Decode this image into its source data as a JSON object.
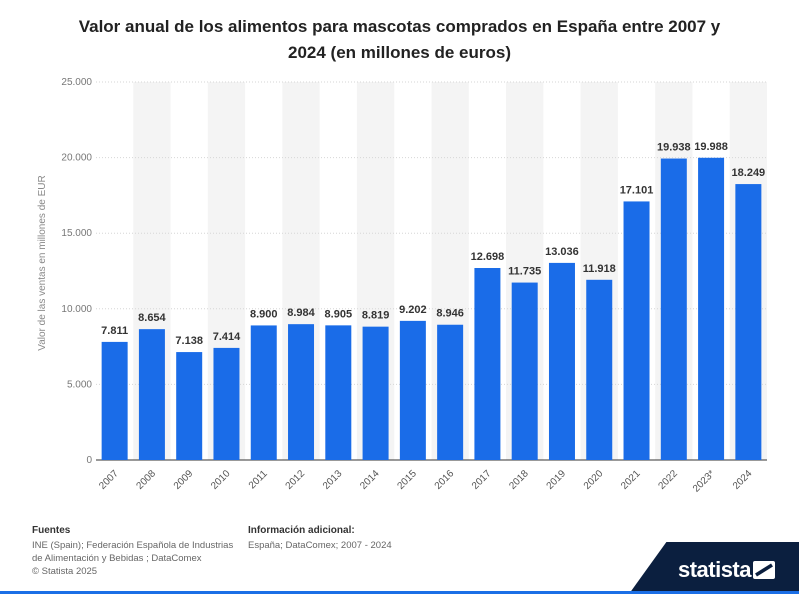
{
  "chart_data": {
    "type": "bar",
    "title": "Valor anual de los alimentos para mascotas comprados en España entre 2007 y 2024 (en millones de euros)",
    "title_lines": [
      "Valor anual de los alimentos para mascotas comprados en España entre 2007 y",
      "2024 (en millones de euros)"
    ],
    "ylabel": "Valor de las ventas en millones de EUR",
    "xlabel": "",
    "ylim": [
      0,
      25000
    ],
    "yticks": [
      0,
      5000,
      10000,
      15000,
      20000,
      25000
    ],
    "ytick_labels": [
      "0",
      "5.000",
      "10.000",
      "15.000",
      "20.000",
      "25.000"
    ],
    "categories": [
      "2007",
      "2008",
      "2009",
      "2010",
      "2011",
      "2012",
      "2013",
      "2014",
      "2015",
      "2016",
      "2017",
      "2018",
      "2019",
      "2020",
      "2021",
      "2022",
      "2023*",
      "2024"
    ],
    "values": [
      7811,
      8654,
      7138,
      7414,
      8900,
      8984,
      8905,
      8819,
      9202,
      8946,
      12698,
      11735,
      13036,
      11918,
      17101,
      19938,
      19988,
      18249
    ],
    "value_labels": [
      "7.811",
      "8.654",
      "7.138",
      "7.414",
      "8.900",
      "8.984",
      "8.905",
      "8.819",
      "9.202",
      "8.946",
      "12.698",
      "11.735",
      "13.036",
      "11.918",
      "17.101",
      "19.938",
      "19.988",
      "18.249"
    ],
    "bar_color": "#1a6ce8",
    "grid": true
  },
  "footer": {
    "sources_heading": "Fuentes",
    "sources_lines": [
      "INE (Spain); Federación Española de Industrias",
      "de Alimentación y Bebidas ; DataComex"
    ],
    "copyright": "© Statista 2025",
    "info_heading": "Información adicional:",
    "info_text": "España; DataComex; 2007 - 2024"
  },
  "brand": {
    "name": "statista",
    "color": "#0b1f3f",
    "accent": "#1b6fe6"
  }
}
